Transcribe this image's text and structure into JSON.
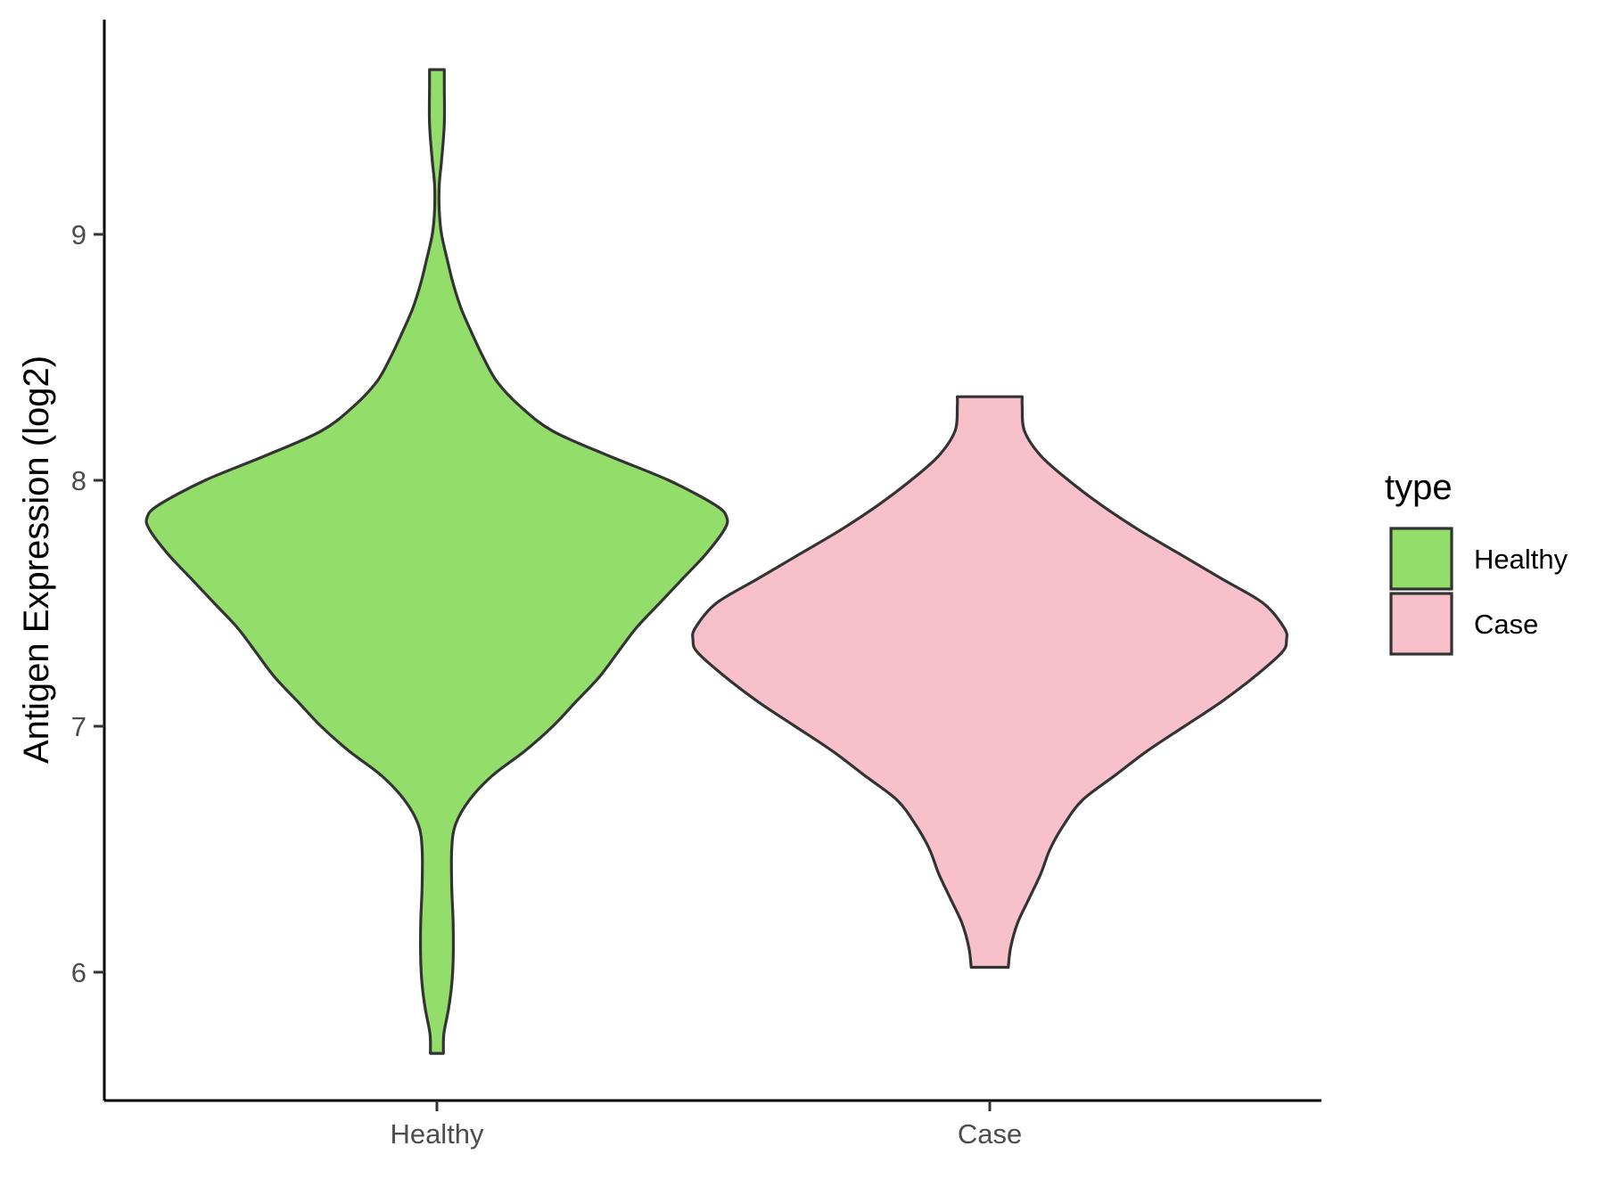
{
  "chart_data": {
    "type": "violin",
    "title": "",
    "xlabel": "",
    "ylabel": "Antigen Expression (log2)",
    "ylim": [
      5.5,
      9.85
    ],
    "yticks": [
      6,
      7,
      8,
      9
    ],
    "categories": [
      "Healthy",
      "Case"
    ],
    "legend": {
      "title": "type",
      "position": "right",
      "entries": [
        {
          "label": "Healthy",
          "color": "#93DD6A"
        },
        {
          "label": "Case",
          "color": "#F7C0CB"
        }
      ]
    },
    "grid": false,
    "series": [
      {
        "name": "Healthy",
        "color": "#93DD6A",
        "min": 5.67,
        "max": 9.67,
        "profile": [
          [
            5.67,
            0.014
          ],
          [
            5.75,
            0.015
          ],
          [
            5.85,
            0.025
          ],
          [
            5.95,
            0.032
          ],
          [
            6.05,
            0.035
          ],
          [
            6.2,
            0.035
          ],
          [
            6.35,
            0.032
          ],
          [
            6.5,
            0.032
          ],
          [
            6.6,
            0.04
          ],
          [
            6.7,
            0.07
          ],
          [
            6.8,
            0.12
          ],
          [
            6.9,
            0.19
          ],
          [
            7.0,
            0.25
          ],
          [
            7.1,
            0.3
          ],
          [
            7.2,
            0.35
          ],
          [
            7.3,
            0.39
          ],
          [
            7.4,
            0.43
          ],
          [
            7.5,
            0.48
          ],
          [
            7.6,
            0.53
          ],
          [
            7.7,
            0.58
          ],
          [
            7.8,
            0.62
          ],
          [
            7.85,
            0.625
          ],
          [
            7.9,
            0.6
          ],
          [
            8.0,
            0.5
          ],
          [
            8.1,
            0.37
          ],
          [
            8.2,
            0.25
          ],
          [
            8.3,
            0.18
          ],
          [
            8.4,
            0.13
          ],
          [
            8.5,
            0.1
          ],
          [
            8.6,
            0.075
          ],
          [
            8.7,
            0.052
          ],
          [
            8.8,
            0.035
          ],
          [
            8.9,
            0.022
          ],
          [
            9.0,
            0.01
          ],
          [
            9.1,
            0.005
          ],
          [
            9.2,
            0.005
          ],
          [
            9.3,
            0.01
          ],
          [
            9.45,
            0.016
          ],
          [
            9.6,
            0.016
          ],
          [
            9.67,
            0.016
          ]
        ]
      },
      {
        "name": "Case",
        "color": "#F7C0CB",
        "min": 6.02,
        "max": 8.34,
        "profile": [
          [
            6.02,
            0.04
          ],
          [
            6.1,
            0.045
          ],
          [
            6.2,
            0.06
          ],
          [
            6.3,
            0.085
          ],
          [
            6.4,
            0.11
          ],
          [
            6.5,
            0.13
          ],
          [
            6.6,
            0.16
          ],
          [
            6.7,
            0.2
          ],
          [
            6.8,
            0.27
          ],
          [
            6.9,
            0.34
          ],
          [
            7.0,
            0.42
          ],
          [
            7.1,
            0.5
          ],
          [
            7.2,
            0.57
          ],
          [
            7.3,
            0.63
          ],
          [
            7.35,
            0.64
          ],
          [
            7.4,
            0.635
          ],
          [
            7.5,
            0.59
          ],
          [
            7.6,
            0.5
          ],
          [
            7.7,
            0.41
          ],
          [
            7.8,
            0.32
          ],
          [
            7.9,
            0.24
          ],
          [
            8.0,
            0.17
          ],
          [
            8.1,
            0.11
          ],
          [
            8.2,
            0.075
          ],
          [
            8.3,
            0.07
          ],
          [
            8.34,
            0.07
          ]
        ]
      }
    ]
  }
}
